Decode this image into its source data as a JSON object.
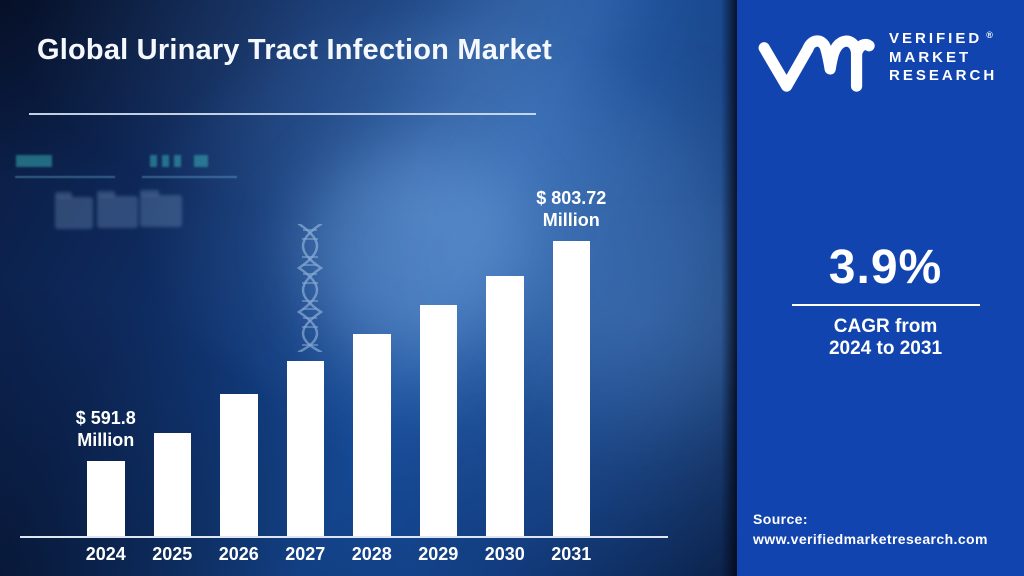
{
  "title": "Global Urinary Tract Infection Market",
  "brand": {
    "name_lines": [
      "VERIFIED",
      "MARKET",
      "RESEARCH"
    ],
    "registered": "®"
  },
  "cagr": {
    "value": "3.9%",
    "caption": [
      "CAGR from",
      "2024 to 2031"
    ]
  },
  "source": {
    "label": "Source:",
    "url": "www.verifiedmarketresearch.com"
  },
  "chart_data": {
    "type": "bar",
    "title": "Global Urinary Tract Infection Market",
    "categories": [
      "2024",
      "2025",
      "2026",
      "2027",
      "2028",
      "2029",
      "2030",
      "2031"
    ],
    "values": [
      591.8,
      619,
      656,
      688,
      714,
      742,
      770,
      803.72
    ],
    "value_unit": "USD Million",
    "labeled_values": {
      "2024": "$ 591.8 Million",
      "2031": "$ 803.72 Million"
    },
    "annotations": [
      {
        "index": 0,
        "lines": [
          "$ 591.8",
          "Million"
        ]
      },
      {
        "index": 7,
        "lines": [
          "$ 803.72",
          "Million"
        ]
      }
    ],
    "xlabel": "",
    "ylabel": "",
    "gridlines": false,
    "legend": null,
    "bar_color": "#ffffff",
    "axis_line_color": "#dde6f2"
  },
  "colors": {
    "right_panel_bg": "#1244b0",
    "bar": "#ffffff",
    "axis_line": "#dde6f2",
    "title_underline": "#cfe0f2",
    "accent_teal": "#3cd0c8",
    "text": "#ffffff"
  }
}
